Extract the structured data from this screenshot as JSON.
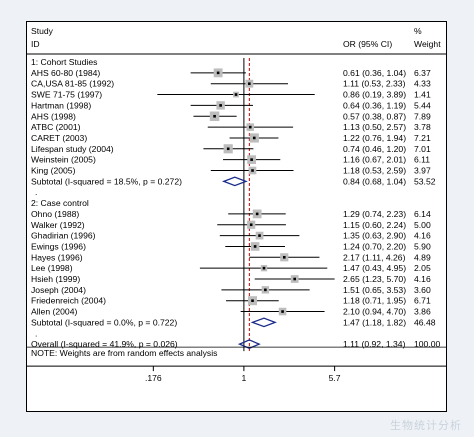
{
  "chart_data": {
    "type": "forest",
    "header": {
      "study_line1": "Study",
      "study_line2": "ID",
      "or_label": "OR (95% CI)",
      "weight_line1": "%",
      "weight_line2": "Weight"
    },
    "xscale": "log",
    "xticks": [
      0.176,
      1,
      5.7
    ],
    "xtick_labels": [
      ".176",
      "1",
      "5.7"
    ],
    "dashed_reference": 1.11,
    "rows": [
      {
        "kind": "group",
        "label": "1: Cohort Studies"
      },
      {
        "kind": "study",
        "label": "AHS 60-80 (1984)",
        "or": 0.61,
        "lo": 0.36,
        "hi": 1.04,
        "text": "0.61 (0.36, 1.04)",
        "weight": "6.37"
      },
      {
        "kind": "study",
        "label": "CA,USA 81-85 (1992)",
        "or": 1.11,
        "lo": 0.53,
        "hi": 2.33,
        "text": "1.11 (0.53, 2.33)",
        "weight": "4.33"
      },
      {
        "kind": "study",
        "label": "SWE 71-75 (1997)",
        "or": 0.86,
        "lo": 0.19,
        "hi": 3.89,
        "text": "0.86 (0.19, 3.89)",
        "weight": "1.41"
      },
      {
        "kind": "study",
        "label": "Hartman (1998)",
        "or": 0.64,
        "lo": 0.36,
        "hi": 1.19,
        "text": "0.64 (0.36, 1.19)",
        "weight": "5.44"
      },
      {
        "kind": "study",
        "label": "AHS (1998)",
        "or": 0.57,
        "lo": 0.38,
        "hi": 0.87,
        "text": "0.57 (0.38, 0.87)",
        "weight": "7.89"
      },
      {
        "kind": "study",
        "label": "ATBC (2001)",
        "or": 1.13,
        "lo": 0.5,
        "hi": 2.57,
        "text": "1.13 (0.50, 2.57)",
        "weight": "3.78"
      },
      {
        "kind": "study",
        "label": "CARET (2003)",
        "or": 1.22,
        "lo": 0.76,
        "hi": 1.94,
        "text": "1.22 (0.76, 1.94)",
        "weight": "7.21"
      },
      {
        "kind": "study",
        "label": "Lifespan study (2004)",
        "or": 0.74,
        "lo": 0.46,
        "hi": 1.2,
        "text": "0.74 (0.46, 1.20)",
        "weight": "7.01"
      },
      {
        "kind": "study",
        "label": "Weinstein (2005)",
        "or": 1.16,
        "lo": 0.67,
        "hi": 2.01,
        "text": "1.16 (0.67, 2.01)",
        "weight": "6.11"
      },
      {
        "kind": "study",
        "label": "King (2005)",
        "or": 1.18,
        "lo": 0.53,
        "hi": 2.59,
        "text": "1.18 (0.53, 2.59)",
        "weight": "3.97"
      },
      {
        "kind": "subtotal",
        "label": "Subtotal  (I-squared = 18.5%, p = 0.272)",
        "or": 0.84,
        "lo": 0.68,
        "hi": 1.04,
        "text": "0.84 (0.68, 1.04)",
        "weight": "53.52"
      },
      {
        "kind": "dot",
        "label": "."
      },
      {
        "kind": "group",
        "label": "2: Case control"
      },
      {
        "kind": "study",
        "label": "Ohno (1988)",
        "or": 1.29,
        "lo": 0.74,
        "hi": 2.23,
        "text": "1.29 (0.74, 2.23)",
        "weight": "6.14"
      },
      {
        "kind": "study",
        "label": "Walker (1992)",
        "or": 1.15,
        "lo": 0.6,
        "hi": 2.24,
        "text": "1.15 (0.60, 2.24)",
        "weight": "5.00"
      },
      {
        "kind": "study",
        "label": "Ghadirian (1996)",
        "or": 1.35,
        "lo": 0.63,
        "hi": 2.9,
        "text": "1.35 (0.63, 2.90)",
        "weight": "4.16"
      },
      {
        "kind": "study",
        "label": "Ewings (1996)",
        "or": 1.24,
        "lo": 0.7,
        "hi": 2.2,
        "text": "1.24 (0.70, 2.20)",
        "weight": "5.90"
      },
      {
        "kind": "study",
        "label": "Hayes (1996)",
        "or": 2.17,
        "lo": 1.11,
        "hi": 4.26,
        "text": "2.17 (1.11, 4.26)",
        "weight": "4.89"
      },
      {
        "kind": "study",
        "label": "Lee (1998)",
        "or": 1.47,
        "lo": 0.43,
        "hi": 4.95,
        "text": "1.47 (0.43, 4.95)",
        "weight": "2.05"
      },
      {
        "kind": "study",
        "label": "Hsieh (1999)",
        "or": 2.65,
        "lo": 1.23,
        "hi": 5.7,
        "text": "2.65 (1.23, 5.70)",
        "weight": "4.16"
      },
      {
        "kind": "study",
        "label": "Joseph (2004)",
        "or": 1.51,
        "lo": 0.65,
        "hi": 3.53,
        "text": "1.51 (0.65, 3.53)",
        "weight": "3.60"
      },
      {
        "kind": "study",
        "label": "Friedenreich (2004)",
        "or": 1.18,
        "lo": 0.71,
        "hi": 1.95,
        "text": "1.18 (0.71, 1.95)",
        "weight": "6.71"
      },
      {
        "kind": "study",
        "label": "Allen (2004)",
        "or": 2.1,
        "lo": 0.94,
        "hi": 4.7,
        "text": "2.10 (0.94, 4.70)",
        "weight": "3.86"
      },
      {
        "kind": "subtotal",
        "label": "Subtotal  (I-squared = 0.0%, p = 0.722)",
        "or": 1.47,
        "lo": 1.18,
        "hi": 1.82,
        "text": "1.47 (1.18, 1.82)",
        "weight": "46.48"
      },
      {
        "kind": "dot",
        "label": "."
      },
      {
        "kind": "overall",
        "label": "Overall  (I-squared = 41.9%, p = 0.026)",
        "or": 1.11,
        "lo": 0.92,
        "hi": 1.34,
        "text": "1.11 (0.92, 1.34)",
        "weight": "100.00"
      }
    ],
    "note": "NOTE: Weights are from random effects analysis",
    "colors": {
      "box_fill": "#bdbdbd",
      "diamond_stroke": "#1a2a8a",
      "dashed_line": "#c00000",
      "line": "#000000"
    }
  },
  "watermark": "生物统计分析"
}
